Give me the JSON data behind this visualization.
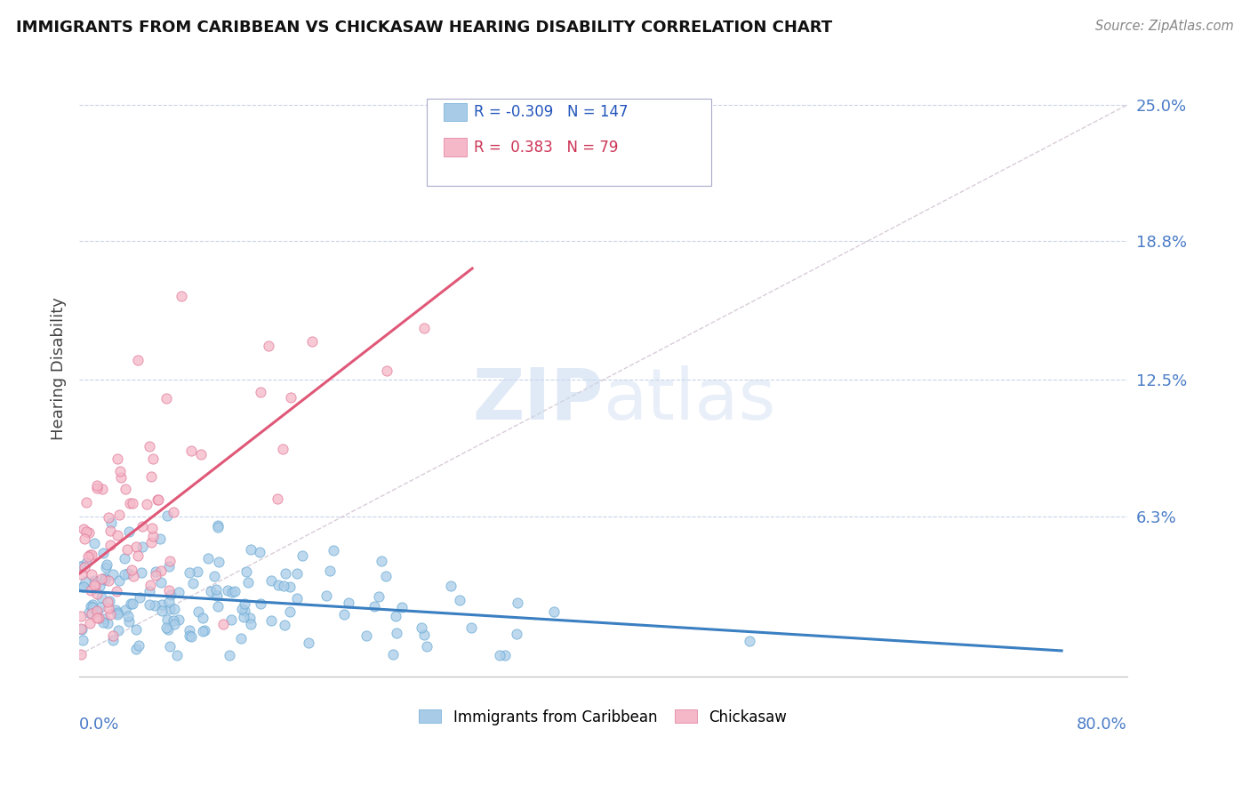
{
  "title": "IMMIGRANTS FROM CARIBBEAN VS CHICKASAW HEARING DISABILITY CORRELATION CHART",
  "source": "Source: ZipAtlas.com",
  "xlim": [
    0.0,
    0.8
  ],
  "ylim": [
    -0.01,
    0.27
  ],
  "ytick_vals": [
    0.063,
    0.125,
    0.188,
    0.25
  ],
  "ytick_labels": [
    "6.3%",
    "12.5%",
    "18.8%",
    "25.0%"
  ],
  "series1_label": "Immigrants from Caribbean",
  "series1_color": "#a8cce8",
  "series1_edge_color": "#6aaad4",
  "series1_line_color": "#3a7fc1",
  "series1_R": -0.309,
  "series1_N": 147,
  "series2_label": "Chickasaw",
  "series2_color": "#f5b8c8",
  "series2_edge_color": "#e07898",
  "series2_line_color": "#e05878",
  "series2_R": 0.383,
  "series2_N": 79,
  "legend_R1": "-0.309",
  "legend_N1": "147",
  "legend_R2": "0.383",
  "legend_N2": "79",
  "background_color": "#ffffff",
  "grid_color": "#c8d4e8",
  "watermark_color": "#c8d8f0",
  "seed": 12345
}
